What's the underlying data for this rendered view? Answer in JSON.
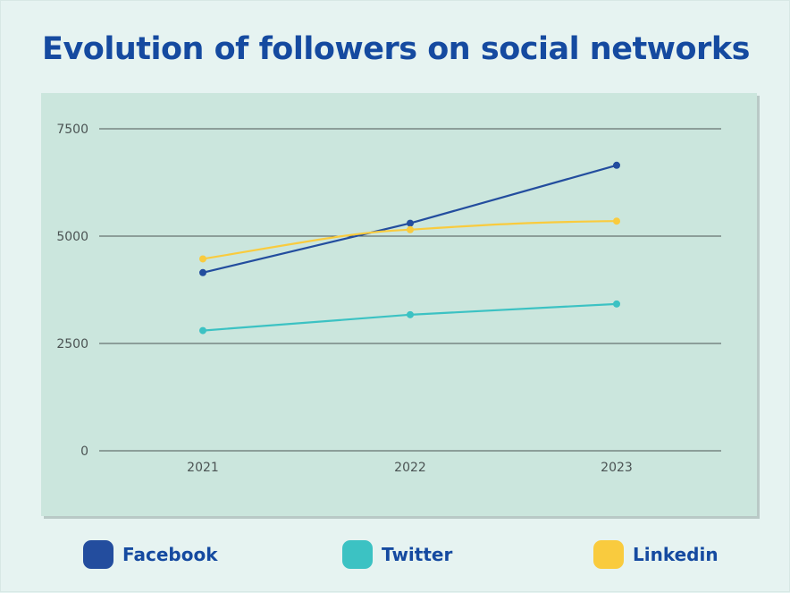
{
  "chart_data": {
    "type": "line",
    "title": "Evolution of followers on social networks",
    "xlabel": "",
    "ylabel": "",
    "categories": [
      "2021",
      "2022",
      "2023"
    ],
    "ylim": [
      0,
      7500
    ],
    "yticks": [
      0,
      2500,
      5000,
      7500
    ],
    "grid": true,
    "legend_position": "bottom",
    "series": [
      {
        "name": "Facebook",
        "color": "#234d9e",
        "values": [
          4150,
          5300,
          6650
        ]
      },
      {
        "name": "Twitter",
        "color": "#3cc2c3",
        "values": [
          2800,
          3170,
          3420
        ]
      },
      {
        "name": "Linkedin",
        "color": "#f9cb3e",
        "values": [
          4470,
          5150,
          5350
        ]
      }
    ]
  }
}
